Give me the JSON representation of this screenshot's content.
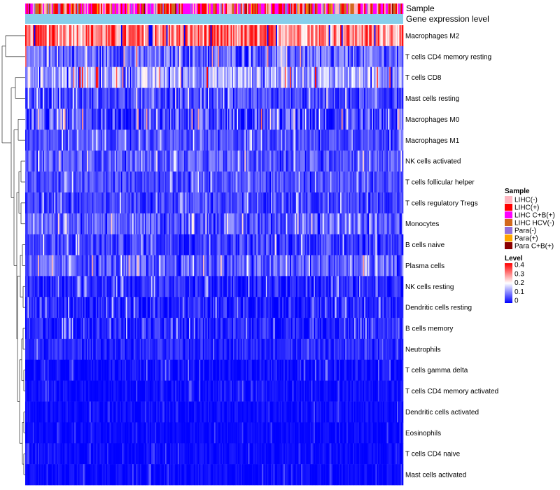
{
  "chart_data": {
    "type": "heatmap",
    "title": "",
    "column_annotations": [
      "Sample",
      "Gene expression level"
    ],
    "rows": [
      {
        "label": "Macrophages M2",
        "mean": 0.3,
        "spread": 0.1
      },
      {
        "label": "T cells CD4 memory resting",
        "mean": 0.08,
        "spread": 0.07
      },
      {
        "label": "T cells CD8",
        "mean": 0.14,
        "spread": 0.08
      },
      {
        "label": "Mast cells resting",
        "mean": 0.05,
        "spread": 0.05
      },
      {
        "label": "Macrophages M0",
        "mean": 0.06,
        "spread": 0.08
      },
      {
        "label": "Macrophages M1",
        "mean": 0.06,
        "spread": 0.04
      },
      {
        "label": "NK cells activated",
        "mean": 0.07,
        "spread": 0.05
      },
      {
        "label": "T cells follicular helper",
        "mean": 0.06,
        "spread": 0.04
      },
      {
        "label": "T cells regulatory  Tregs",
        "mean": 0.05,
        "spread": 0.04
      },
      {
        "label": "Monocytes",
        "mean": 0.07,
        "spread": 0.05
      },
      {
        "label": "B cells naive",
        "mean": 0.05,
        "spread": 0.05
      },
      {
        "label": "Plasma cells",
        "mean": 0.07,
        "spread": 0.06
      },
      {
        "label": "NK cells resting",
        "mean": 0.03,
        "spread": 0.04
      },
      {
        "label": "Dendritic cells resting",
        "mean": 0.03,
        "spread": 0.04
      },
      {
        "label": "B cells memory",
        "mean": 0.03,
        "spread": 0.04
      },
      {
        "label": "Neutrophils",
        "mean": 0.03,
        "spread": 0.03
      },
      {
        "label": "T cells gamma delta",
        "mean": 0.01,
        "spread": 0.03
      },
      {
        "label": "T cells CD4 memory activated",
        "mean": 0.01,
        "spread": 0.02
      },
      {
        "label": "Dendritic cells activated",
        "mean": 0.01,
        "spread": 0.02
      },
      {
        "label": "Eosinophils",
        "mean": 0.005,
        "spread": 0.015
      },
      {
        "label": "T cells CD4 naive",
        "mean": 0.005,
        "spread": 0.02
      },
      {
        "label": "Mast cells activated",
        "mean": 0.005,
        "spread": 0.02
      }
    ],
    "n_samples": 300,
    "sample_legend": {
      "title": "Sample",
      "items": [
        {
          "label": "LIHC(-)",
          "color": "#ffb6c1"
        },
        {
          "label": "LIHC(+)",
          "color": "#ff0000"
        },
        {
          "label": "LIHC C+B(+)",
          "color": "#ff00ff"
        },
        {
          "label": "LIHC HCV(-)",
          "color": "#d2691e"
        },
        {
          "label": "Para(-)",
          "color": "#9370db"
        },
        {
          "label": "Para(+)",
          "color": "#ffa500"
        },
        {
          "label": "Para C+B(+)",
          "color": "#8b0000"
        }
      ],
      "weights": [
        3,
        3,
        3,
        2,
        1,
        0.5,
        0.3
      ]
    },
    "level_legend": {
      "title": "Level",
      "ticks": [
        "0.4",
        "0.3",
        "0.2",
        "0.1",
        "0"
      ],
      "range": [
        0,
        0.4
      ],
      "colors": [
        "#0000ff",
        "#ffffff",
        "#ff0000"
      ]
    },
    "expression_bar_color": "#87ceeb",
    "dendrogram": "row clustering tree (left)"
  }
}
